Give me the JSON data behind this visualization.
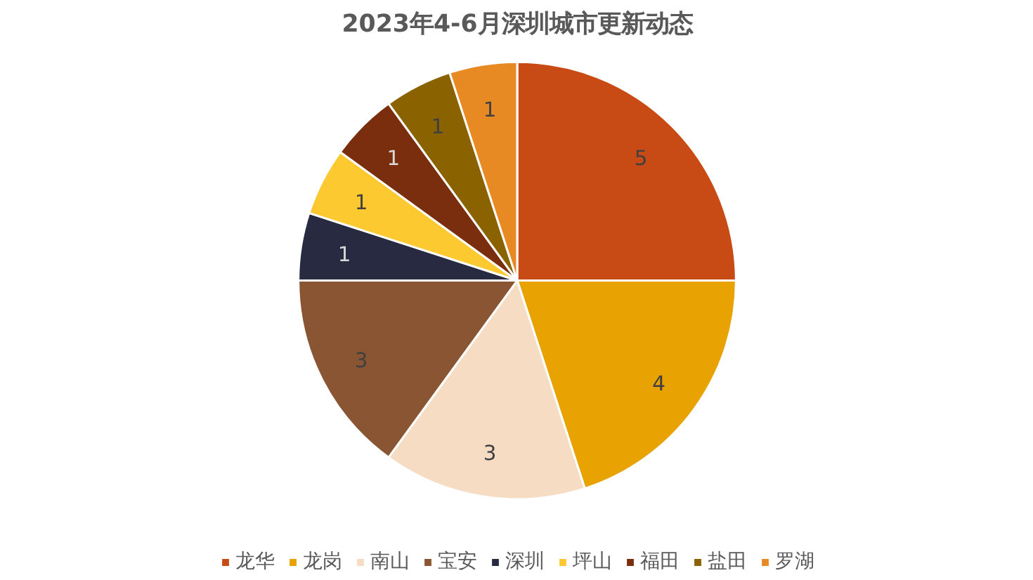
{
  "chart_data": {
    "type": "pie",
    "title": "2023年4-6月深圳城市更新动态",
    "categories": [
      "龙华",
      "龙岗",
      "南山",
      "宝安",
      "深圳",
      "坪山",
      "福田",
      "盐田",
      "罗湖"
    ],
    "values": [
      5,
      4,
      3,
      3,
      1,
      1,
      1,
      1,
      1
    ],
    "colors": [
      "#c84b16",
      "#e8a202",
      "#f6dcc2",
      "#8a5533",
      "#272a40",
      "#fdc931",
      "#7a2e0e",
      "#8a6200",
      "#e88a23"
    ],
    "data_labels": true,
    "legend": "bottom"
  }
}
